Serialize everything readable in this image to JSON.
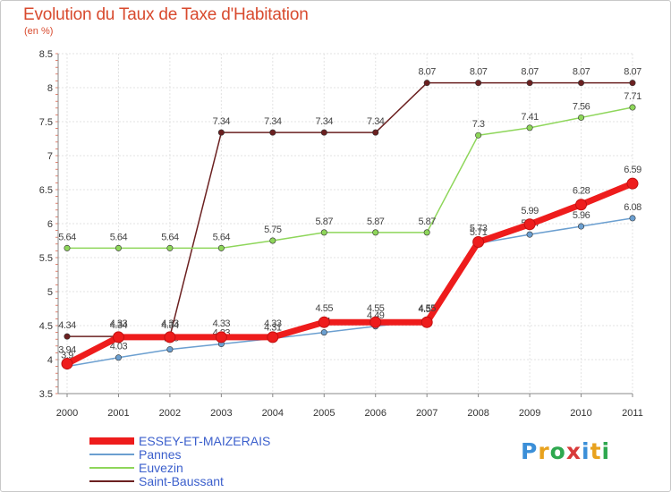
{
  "header": {
    "title": "Evolution du Taux de Taxe d'Habitation",
    "unit": "(en %)"
  },
  "brand": {
    "letters": [
      "P",
      "r",
      "o",
      "x",
      "i",
      "t",
      "i"
    ],
    "colors": [
      "#3b8fd8",
      "#e8a21e",
      "#2fa84f",
      "#d83a3a",
      "#3b8fd8",
      "#e8a21e",
      "#2fa84f"
    ]
  },
  "chart_data": {
    "type": "line",
    "title": "Evolution du Taux de Taxe d'Habitation",
    "ylabel": "(en %)",
    "xlabel": "",
    "x": [
      "2000",
      "2001",
      "2002",
      "2003",
      "2004",
      "2005",
      "2006",
      "2007",
      "2008",
      "2009",
      "2010",
      "2011"
    ],
    "ylim": [
      3.5,
      8.5
    ],
    "yticks": [
      "3.5",
      "4",
      "4.5",
      "5",
      "5.5",
      "6",
      "6.5",
      "7",
      "7.5",
      "8",
      "8.5"
    ],
    "grid": true,
    "legend_position": "bottom-left",
    "series": [
      {
        "name": "Saint-Baussant",
        "color": "#6b2020",
        "values": [
          4.34,
          4.34,
          4.34,
          7.34,
          7.34,
          7.34,
          7.34,
          8.07,
          8.07,
          8.07,
          8.07,
          8.07
        ],
        "labels": [
          "4.34",
          "4.34",
          "4.34",
          "7.34",
          "7.34",
          "7.34",
          "7.34",
          "8.07",
          "8.07",
          "8.07",
          "8.07",
          "8.07"
        ]
      },
      {
        "name": "Euvezin",
        "color": "#8ed65a",
        "values": [
          5.64,
          5.64,
          5.64,
          5.64,
          5.75,
          5.87,
          5.87,
          5.87,
          7.3,
          7.41,
          7.56,
          7.71
        ],
        "labels": [
          "5.64",
          "5.64",
          "5.64",
          "5.64",
          "5.75",
          "5.87",
          "5.87",
          "5.87",
          "7.3",
          "7.41",
          "7.56",
          "7.71"
        ]
      },
      {
        "name": "Pannes",
        "color": "#6b9fd0",
        "values": [
          3.9,
          4.03,
          4.15,
          4.23,
          4.31,
          4.4,
          4.49,
          4.58,
          5.71,
          5.84,
          5.96,
          6.08
        ],
        "labels": [
          "3.9",
          "4.03",
          "4.15",
          "4.23",
          "4.31",
          "4.4",
          "4.49",
          "4.58",
          "5.71",
          "5.84",
          "5.96",
          "6.08"
        ]
      },
      {
        "name": "ESSEY-ET-MAIZERAIS",
        "color": "#ee1c1c",
        "values": [
          3.94,
          4.33,
          4.33,
          4.33,
          4.33,
          4.55,
          4.55,
          4.55,
          5.73,
          5.99,
          6.28,
          6.59
        ],
        "labels": [
          "3.94",
          "4.33",
          "4.33",
          "4.33",
          "4.33",
          "4.55",
          "4.55",
          "4.55",
          "5.73",
          "5.99",
          "6.28",
          "6.59"
        ]
      }
    ],
    "legend_order": [
      "ESSEY-ET-MAIZERAIS",
      "Pannes",
      "Euvezin",
      "Saint-Baussant"
    ]
  }
}
